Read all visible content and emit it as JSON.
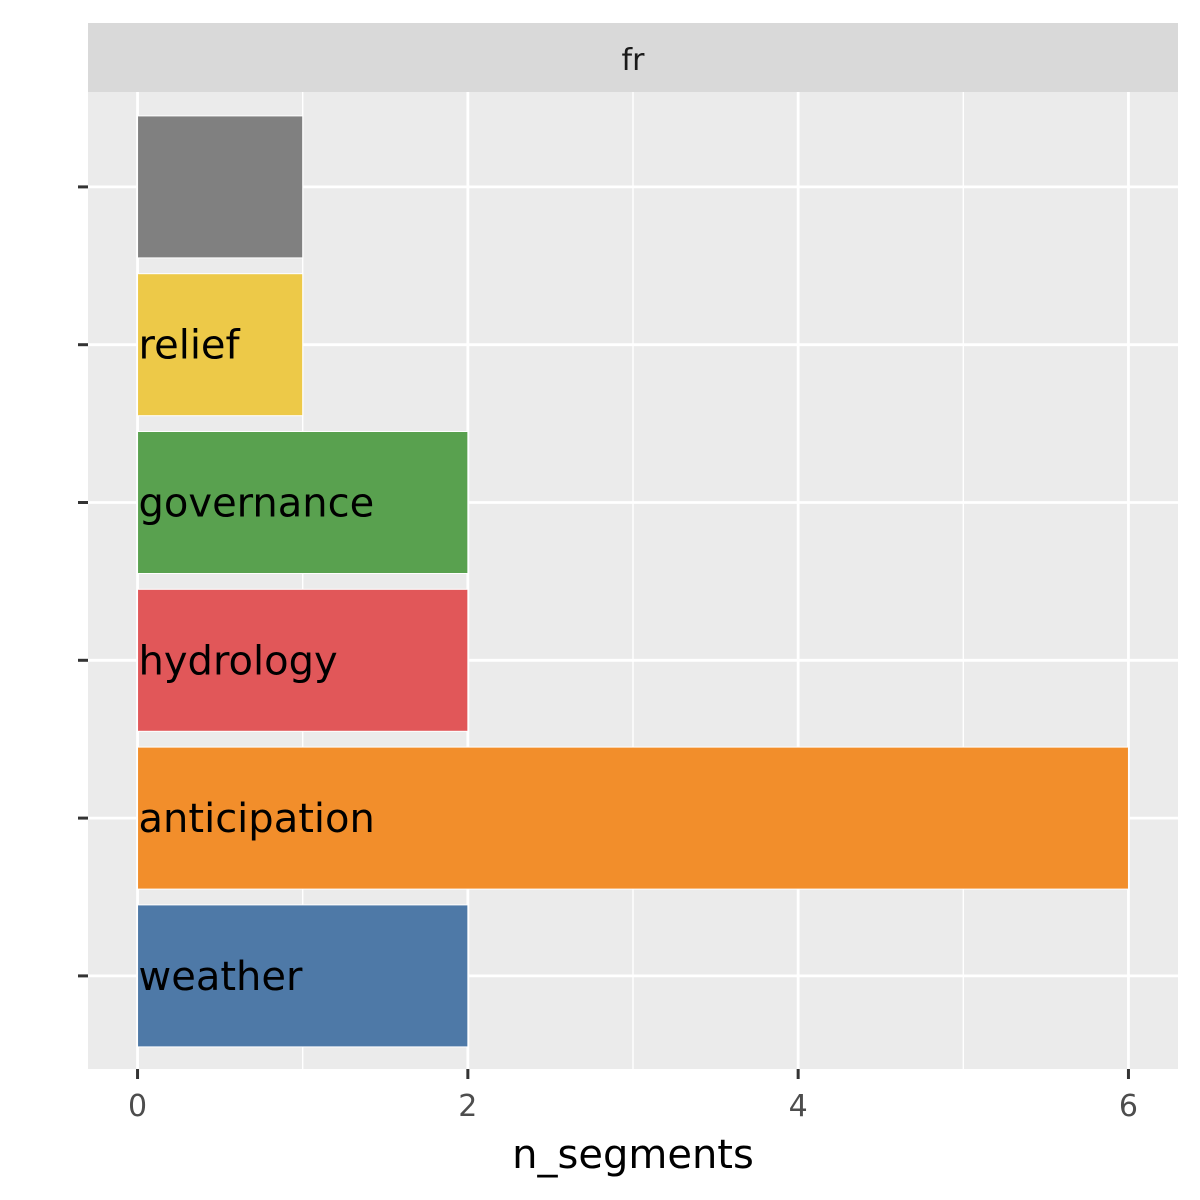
{
  "chart_data": {
    "type": "bar",
    "orientation": "horizontal",
    "facet": "fr",
    "xlabel": "n_segments",
    "ylabel": "",
    "xlim": [
      -0.3,
      6.3
    ],
    "xticks": [
      0,
      2,
      4,
      6
    ],
    "categories": [
      "weather",
      "anticipation",
      "hydrology",
      "governance",
      "relief",
      ""
    ],
    "values": [
      2,
      6,
      2,
      2,
      1,
      1
    ],
    "colors": [
      "#4e79a7",
      "#f28e2b",
      "#e15759",
      "#59a14f",
      "#edc948",
      "#808080"
    ],
    "grid": true,
    "legend": "none"
  }
}
